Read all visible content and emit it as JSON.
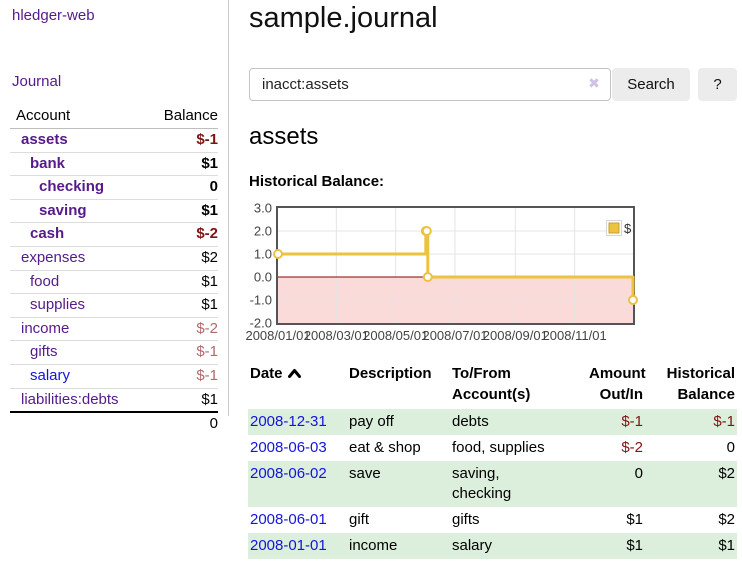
{
  "app": {
    "title": "hledger-web",
    "nav_journal": "Journal"
  },
  "sidebar": {
    "header": {
      "account": "Account",
      "balance": "Balance"
    },
    "accounts": [
      {
        "name": "assets",
        "balance": "$-1",
        "indent": 0,
        "bold": true,
        "neg": "strong"
      },
      {
        "name": "bank",
        "balance": "$1",
        "indent": 1,
        "bold": true,
        "neg": "none"
      },
      {
        "name": "checking",
        "balance": "0",
        "indent": 2,
        "bold": true,
        "neg": "none"
      },
      {
        "name": "saving",
        "balance": "$1",
        "indent": 2,
        "bold": true,
        "neg": "none"
      },
      {
        "name": "cash",
        "balance": "$-2",
        "indent": 1,
        "bold": true,
        "neg": "strong"
      },
      {
        "name": "expenses",
        "balance": "$2",
        "indent": 0,
        "bold": false,
        "neg": "none"
      },
      {
        "name": "food",
        "balance": "$1",
        "indent": 1,
        "bold": false,
        "neg": "none"
      },
      {
        "name": "supplies",
        "balance": "$1",
        "indent": 1,
        "bold": false,
        "neg": "none"
      },
      {
        "name": "income",
        "balance": "$-2",
        "indent": 0,
        "bold": false,
        "neg": "soft"
      },
      {
        "name": "gifts",
        "balance": "$-1",
        "indent": 1,
        "bold": false,
        "neg": "soft"
      },
      {
        "name": "salary",
        "balance": "$-1",
        "indent": 1,
        "bold": false,
        "neg": "soft",
        "link_color": "blue"
      },
      {
        "name": "liabilities:debts",
        "balance": "$1",
        "indent": 0,
        "bold": false,
        "neg": "none"
      }
    ],
    "total": "0"
  },
  "header": {
    "title": "sample.journal"
  },
  "search": {
    "value": "inacct:assets",
    "clear_icon": "✖",
    "button_label": "Search",
    "help_label": "?"
  },
  "account_page": {
    "title": "assets",
    "chart_label": "Historical Balance:"
  },
  "chart_data": {
    "type": "line",
    "step": true,
    "series": [
      {
        "name": "$",
        "color": "#edc240",
        "points": [
          [
            "2008-01-01",
            1
          ],
          [
            "2008-06-01",
            2
          ],
          [
            "2008-06-02",
            2
          ],
          [
            "2008-06-03",
            0
          ],
          [
            "2008-12-31",
            -1
          ]
        ]
      }
    ],
    "x_range": [
      "2008-01-01",
      "2008-12-31"
    ],
    "x_ticks": [
      {
        "date": "2008-01-01",
        "label": "2008/01/01"
      },
      {
        "date": "2008-03-01",
        "label": "2008/03/01"
      },
      {
        "date": "2008-05-01",
        "label": "2008/05/01"
      },
      {
        "date": "2008-07-01",
        "label": "2008/07/01"
      },
      {
        "date": "2008-09-01",
        "label": "2008/09/01"
      },
      {
        "date": "2008-11-01",
        "label": "2008/11/01"
      }
    ],
    "y_ticks": [
      3.0,
      2.0,
      1.0,
      0.0,
      -1.0,
      -2.0
    ],
    "ylim": [
      -2,
      3
    ],
    "grid": true,
    "legend": {
      "label": "$",
      "position": "top-right"
    },
    "colors": {
      "line": "#edc240",
      "marker_fill": "#ffffff",
      "negative_region": "#fbdada",
      "zero_line": "#8b0000",
      "gridline": "#e4e4e4",
      "border": "#545454",
      "tick_text": "#444444"
    }
  },
  "register": {
    "headers": [
      {
        "line1": "Date",
        "line2": "",
        "align": "left",
        "sorted": "asc"
      },
      {
        "line1": "Description",
        "line2": "",
        "align": "left"
      },
      {
        "line1": "To/From",
        "line2": "Account(s)",
        "align": "left"
      },
      {
        "line1": "Amount",
        "line2": "Out/In",
        "align": "right"
      },
      {
        "line1": "Historical",
        "line2": "Balance",
        "align": "right"
      }
    ],
    "rows": [
      {
        "date": "2008-12-31",
        "description": "pay off",
        "accounts": "debts",
        "amount": "$-1",
        "balance": "$-1",
        "amount_neg": true,
        "balance_neg": true,
        "stripe": true
      },
      {
        "date": "2008-06-03",
        "description": "eat & shop",
        "accounts": "food, supplies",
        "amount": "$-2",
        "balance": "0",
        "amount_neg": true,
        "balance_neg": false,
        "stripe": false
      },
      {
        "date": "2008-06-02",
        "description": "save",
        "accounts": "saving,\nchecking",
        "amount": "0",
        "balance": "$2",
        "amount_neg": false,
        "balance_neg": false,
        "stripe": true
      },
      {
        "date": "2008-06-01",
        "description": "gift",
        "accounts": "gifts",
        "amount": "$1",
        "balance": "$2",
        "amount_neg": false,
        "balance_neg": false,
        "stripe": false
      },
      {
        "date": "2008-01-01",
        "description": "income",
        "accounts": "salary",
        "amount": "$1",
        "balance": "$1",
        "amount_neg": false,
        "balance_neg": false,
        "stripe": true
      }
    ]
  }
}
